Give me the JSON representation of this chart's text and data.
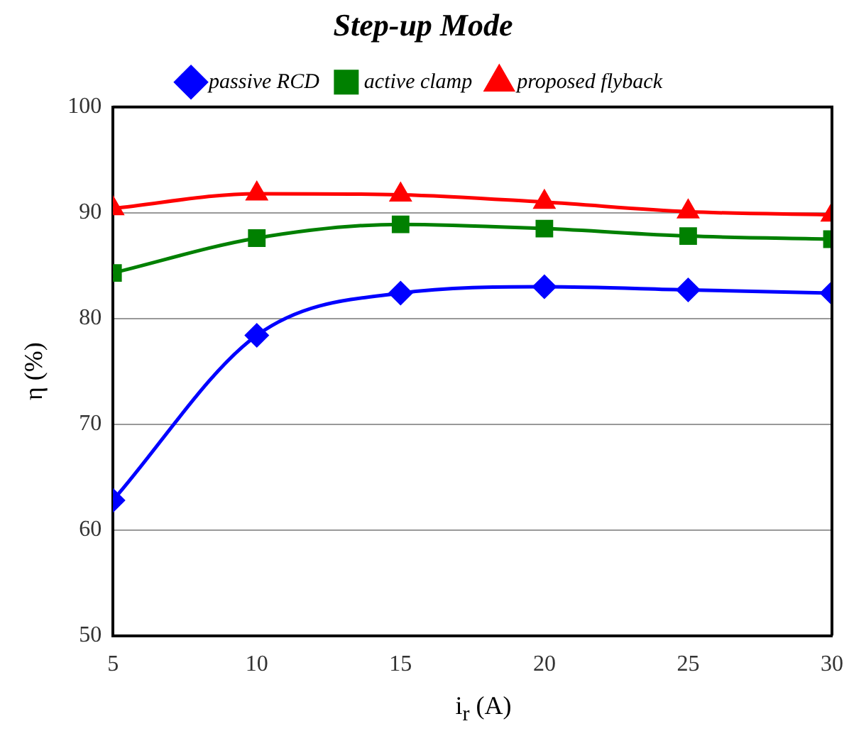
{
  "chart_data": {
    "type": "line",
    "title": "Step-up Mode",
    "xlabel": "i$_{r}$ (A)",
    "ylabel": "η (%)",
    "x": [
      5,
      10,
      15,
      20,
      25,
      30
    ],
    "series": [
      {
        "name": "passive RCD",
        "color": "#0000ff",
        "marker": "diamond",
        "values": [
          62.8,
          78.4,
          82.4,
          83.0,
          82.7,
          82.4
        ]
      },
      {
        "name": "active clamp",
        "color": "#008000",
        "marker": "square",
        "values": [
          84.3,
          87.6,
          88.9,
          88.5,
          87.8,
          87.5
        ]
      },
      {
        "name": "proposed flyback",
        "color": "#ff0000",
        "marker": "triangle",
        "values": [
          90.4,
          91.8,
          91.7,
          91.0,
          90.1,
          89.8
        ]
      }
    ],
    "xlim": [
      5,
      30
    ],
    "xticks": [
      5,
      10,
      15,
      20,
      25,
      30
    ],
    "ylim": [
      50,
      100
    ],
    "yticks": [
      50,
      60,
      70,
      80,
      90,
      100
    ],
    "grid": "y",
    "legend": "top",
    "line_style": "solid"
  }
}
